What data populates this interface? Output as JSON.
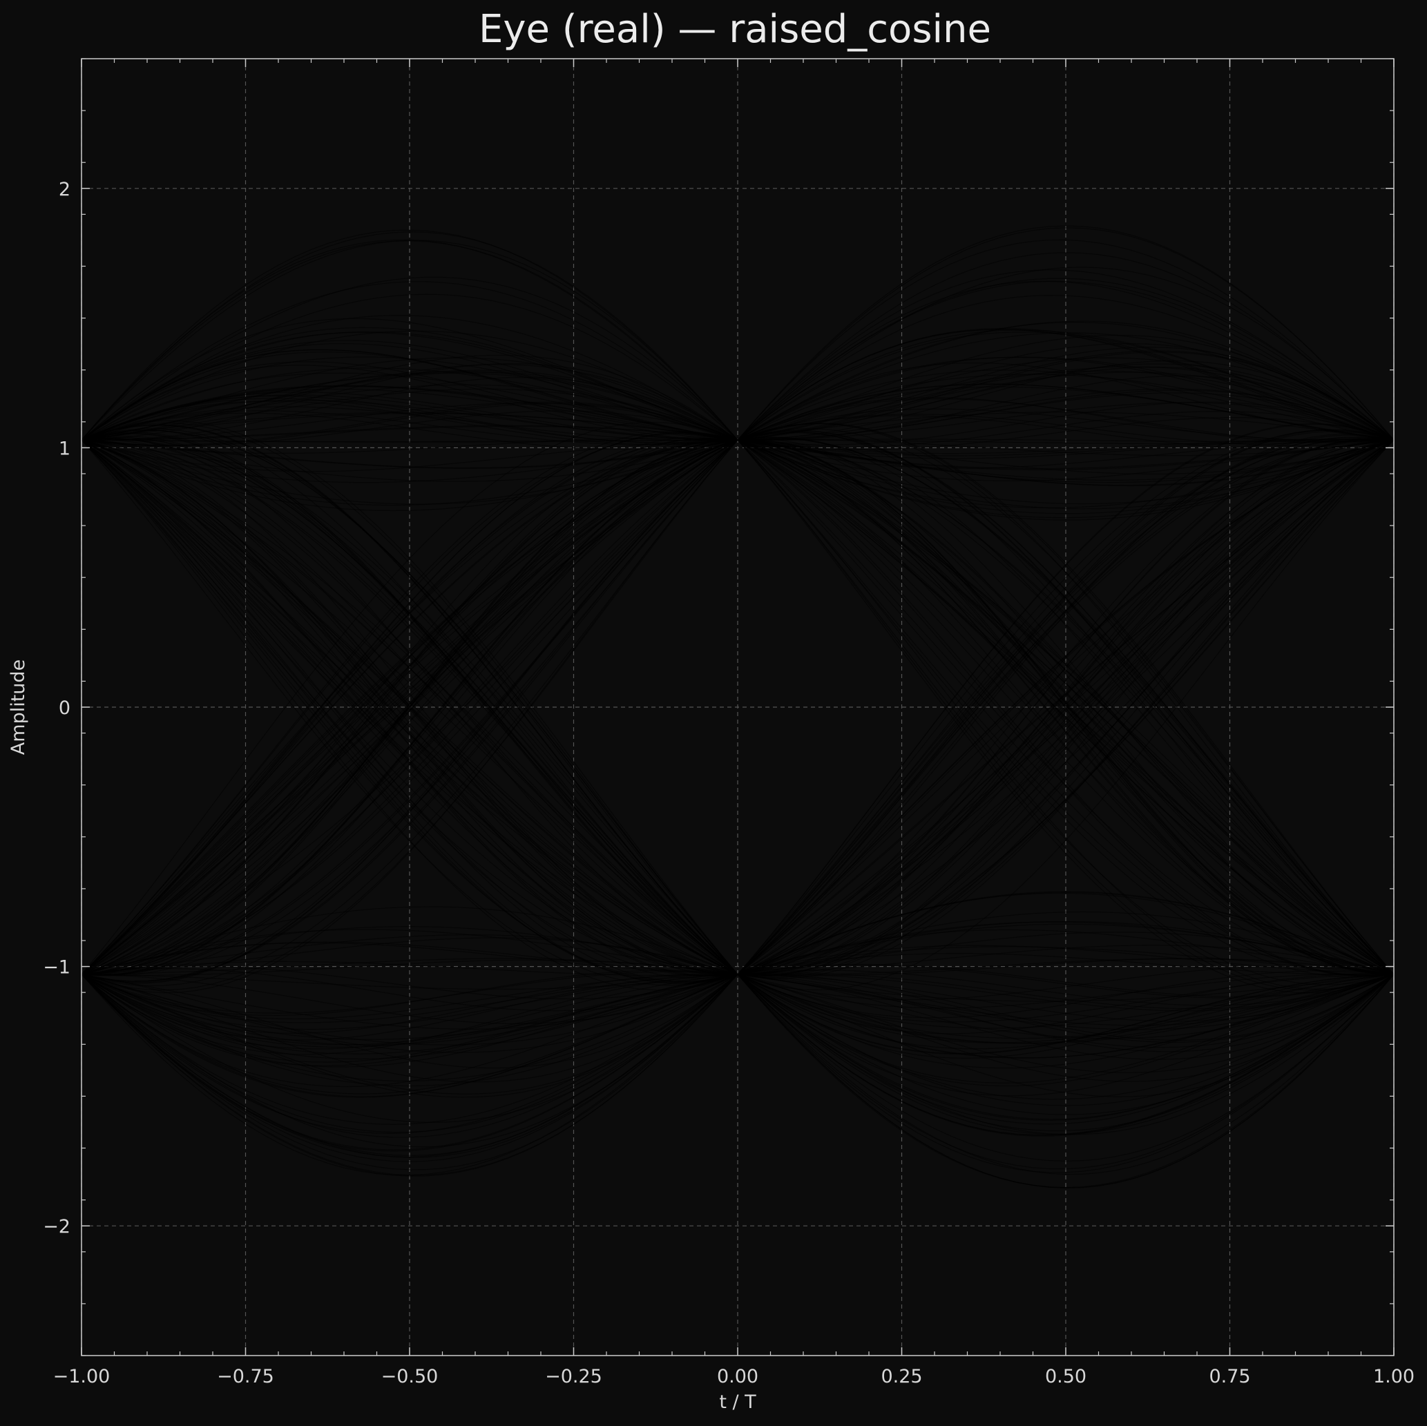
{
  "chart_data": {
    "type": "line",
    "plot_kind": "eye diagram",
    "title": "Eye (real) — raised_cosine",
    "xlabel": "t / T",
    "ylabel": "Amplitude",
    "xlim": [
      -1.0,
      1.0
    ],
    "ylim": [
      -2.5,
      2.5
    ],
    "x_ticks": [
      -1.0,
      -0.75,
      -0.5,
      -0.25,
      0.0,
      0.25,
      0.5,
      0.75,
      1.0
    ],
    "x_tick_labels": [
      "−1.00",
      "−0.75",
      "−0.50",
      "−0.25",
      "0.00",
      "0.25",
      "0.50",
      "0.75",
      "1.00"
    ],
    "y_ticks": [
      2,
      1,
      0,
      -1,
      -2
    ],
    "y_tick_labels": [
      "2",
      "1",
      "0",
      "−1",
      "−2"
    ],
    "grid": true,
    "legend": false,
    "symbol_levels": [
      1,
      -1
    ],
    "trace_envelope_peak": 2.0,
    "trace_count_approx": 600,
    "colors": {
      "background": "#0c0c0c",
      "axes_face": "#0c0c0c",
      "trace": "#000000",
      "grid": "#555555",
      "spine": "#cccccc",
      "text": "#d8d8d8",
      "title": "#ececec"
    }
  }
}
